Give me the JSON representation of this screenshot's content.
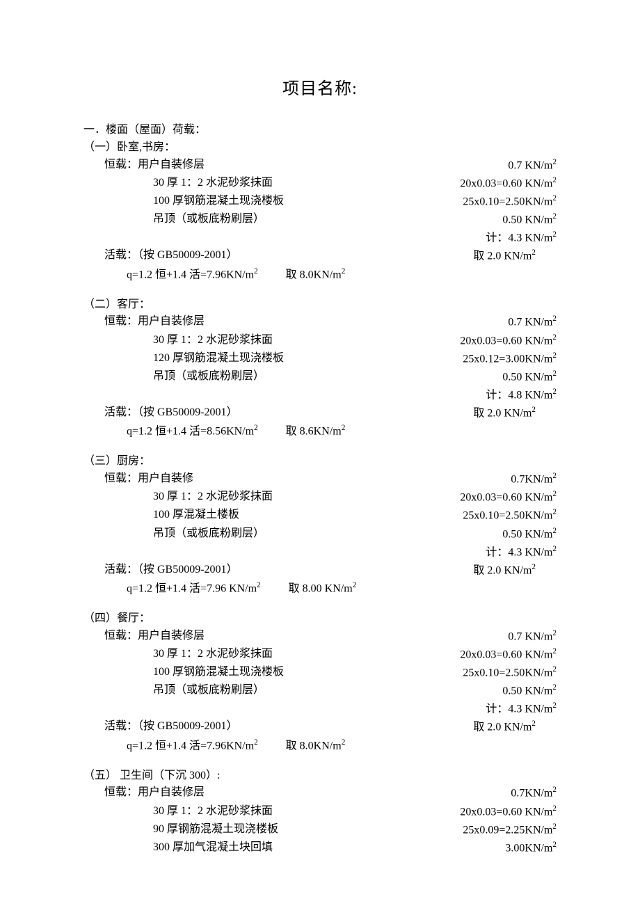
{
  "title": "项目名称:",
  "section1_heading": "一．楼面（屋面）荷载：",
  "sections": [
    {
      "heading": "（一）卧室,书房：",
      "dead_prefix": "恒载：",
      "dead_items": [
        {
          "label": "用户自装修层",
          "value": "0.7 KN/m²"
        },
        {
          "label": "30 厚 1：2 水泥砂浆抹面",
          "value": "20x0.03=0.60 KN/m²"
        },
        {
          "label": "100 厚钢筋混凝土现浇楼板",
          "value": "25x0.10=2.50KN/m²"
        },
        {
          "label": "吊顶（或板底粉刷层）",
          "value": "0.50 KN/m²"
        }
      ],
      "sum_label": "计：",
      "sum_value": "4.3 KN/m²",
      "live_label": "活载：（按 GB50009-2001）",
      "live_value": "取  2.0 KN/m²",
      "q_formula": "q=1.2 恒+1.4 活=7.96KN/m²",
      "q_result": "取 8.0KN/m²"
    },
    {
      "heading": "（二）客厅：",
      "dead_prefix": "恒载：",
      "dead_items": [
        {
          "label": "用户自装修层",
          "value": "0.7 KN/m²"
        },
        {
          "label": "30 厚 1：2 水泥砂浆抹面",
          "value": "20x0.03=0.60 KN/m²"
        },
        {
          "label": "120 厚钢筋混凝土现浇楼板",
          "value": "25x0.12=3.00KN/m²"
        },
        {
          "label": "吊顶（或板底粉刷层）",
          "value": "0.50 KN/m²"
        }
      ],
      "sum_label": "计：",
      "sum_value": "4.8 KN/m²",
      "live_label": "活载：（按 GB50009-2001）",
      "live_value": "取  2.0 KN/m²",
      "q_formula": "q=1.2 恒+1.4 活=8.56KN/m²",
      "q_result": "取 8.6KN/m²"
    },
    {
      "heading": "（三）厨房：",
      "dead_prefix": "恒载：",
      "dead_items": [
        {
          "label": "用户自装修",
          "value": "0.7KN/m²"
        },
        {
          "label": "30 厚 1：2 水泥砂浆抹面",
          "value": "20x0.03=0.60 KN/m²"
        },
        {
          "label": "100 厚混凝土楼板",
          "value": "25x0.10=2.50KN/m²"
        },
        {
          "label": "吊顶（或板底粉刷层）",
          "value": "0.50 KN/m²"
        }
      ],
      "sum_label": "计：",
      "sum_value": "4.3 KN/m²",
      "live_label": "活载：（按 GB50009-2001）",
      "live_value": "取 2.0 KN/m²",
      "q_formula": "q=1.2 恒+1.4 活=7.96 KN/m²",
      "q_result": "取 8.00 KN/m²"
    },
    {
      "heading": "（四）餐厅：",
      "dead_prefix": "恒载：",
      "dead_items": [
        {
          "label": "用户自装修层",
          "value": "0.7 KN/m²"
        },
        {
          "label": "30 厚 1：2 水泥砂浆抹面",
          "value": "20x0.03=0.60 KN/m²"
        },
        {
          "label": "100 厚钢筋混凝土现浇楼板",
          "value": "25x0.10=2.50KN/m²"
        },
        {
          "label": "吊顶（或板底粉刷层）",
          "value": "0.50 KN/m²"
        }
      ],
      "sum_label": "计：",
      "sum_value": "4.3 KN/m²",
      "live_label": "活载：（按 GB50009-2001）",
      "live_value": "取  2.0 KN/m²",
      "q_formula": "q=1.2 恒+1.4 活=7.96KN/m²",
      "q_result": "取 8.0KN/m²"
    },
    {
      "heading": "（五） 卫生间（下沉 300）:",
      "dead_prefix": "恒载：",
      "dead_items": [
        {
          "label": "用户自装修层",
          "value": "0.7KN/m²"
        },
        {
          "label": "30 厚 1：2 水泥砂浆抹面",
          "value": "20x0.03=0.60 KN/m²"
        },
        {
          "label": "90 厚钢筋混凝土现浇楼板",
          "value": "25x0.09=2.25KN/m²"
        },
        {
          "label": "300 厚加气混凝土块回填",
          "value": "3.00KN/m²"
        }
      ],
      "sum_label": null,
      "sum_value": null,
      "live_label": null,
      "live_value": null,
      "q_formula": null,
      "q_result": null
    }
  ]
}
